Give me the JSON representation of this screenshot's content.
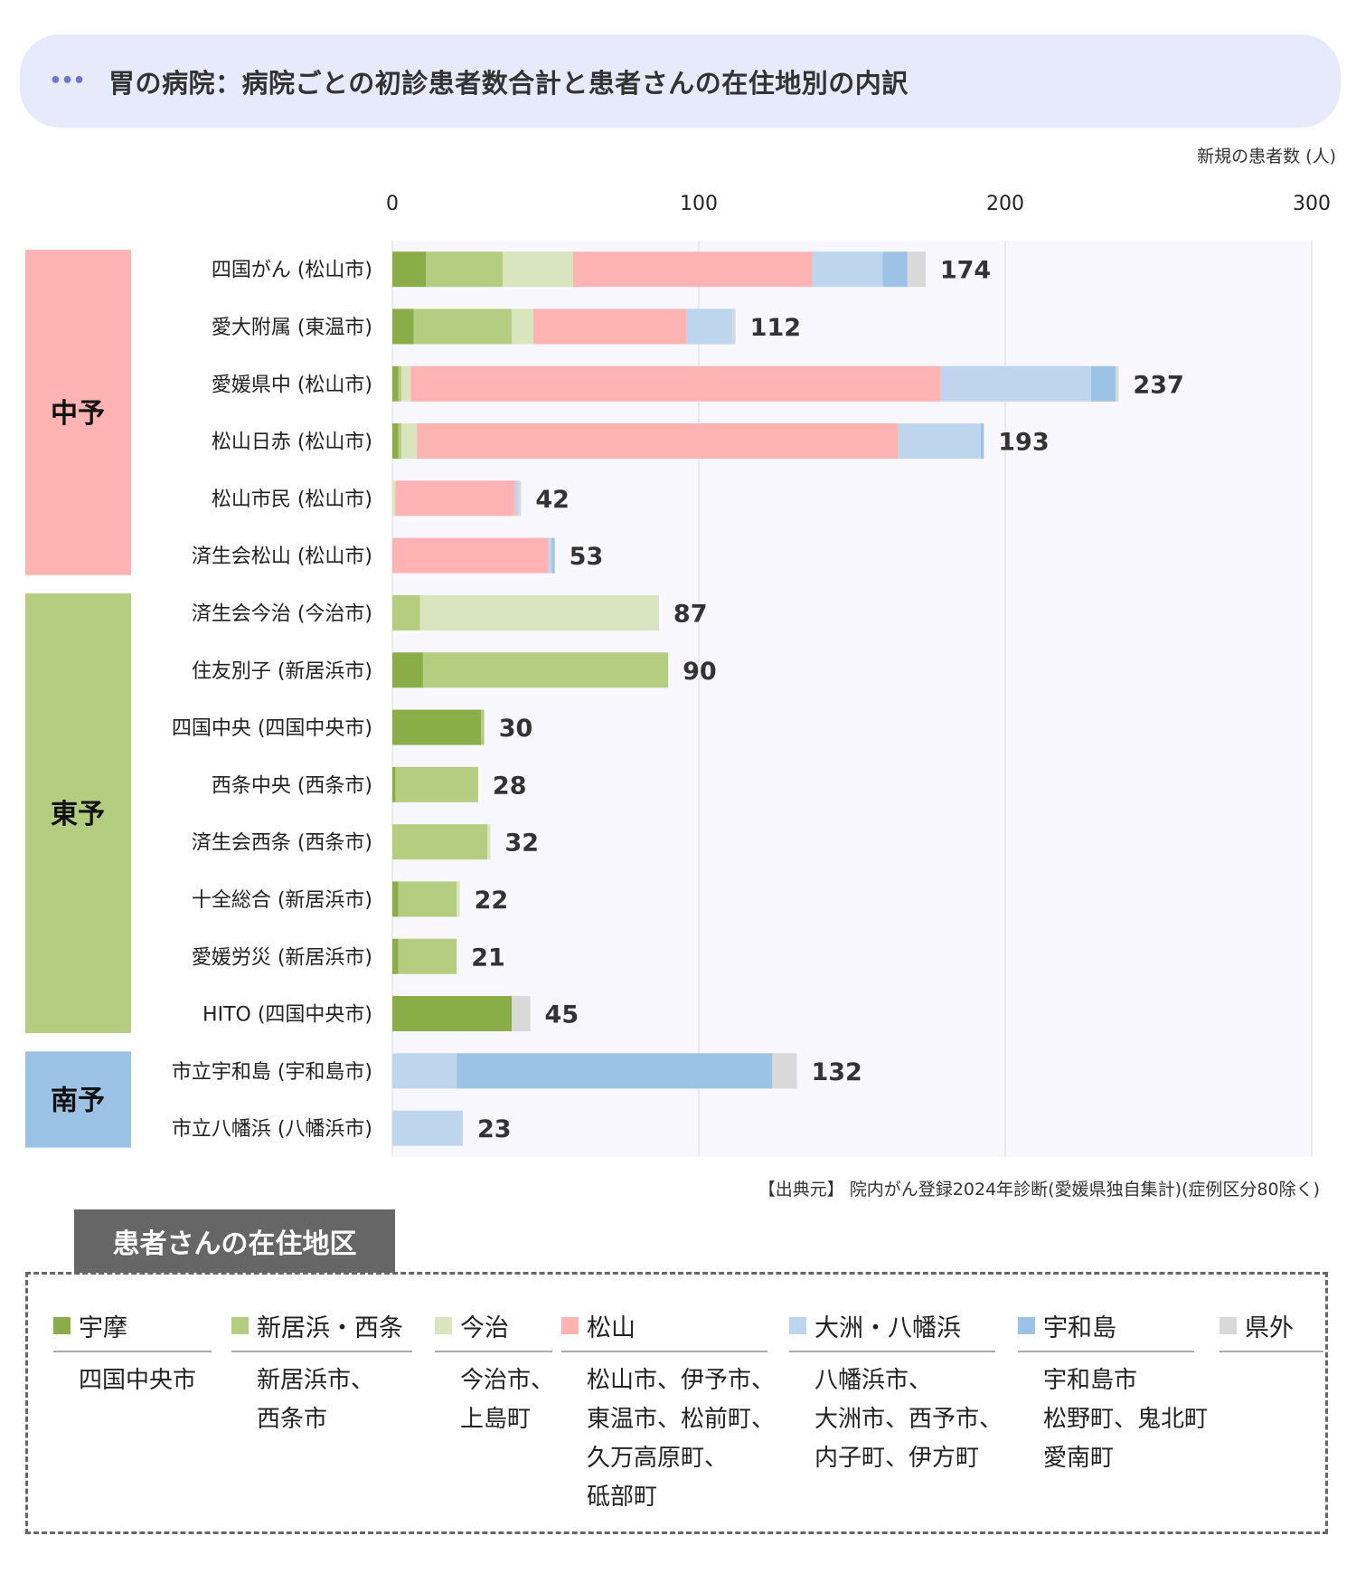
{
  "title": {
    "dots": "•••",
    "text": "胃の病院：病院ごとの初診患者数合計と患者さんの在住地別の内訳"
  },
  "unit_label": "新規の患者数 (人)",
  "source": "【出典元】 院内がん登録2024年診断(愛媛県独自集計)(症例区分80除く)",
  "colors": {
    "uma": "#8aad48",
    "niihama": "#b4cd80",
    "imabari": "#d8e5bf",
    "matsuyama": "#ffb3b3",
    "ozu": "#bdd6ee",
    "uwajima": "#9cc3e6",
    "outside": "#d9d9d9",
    "plot_bg": "#f7f7fd",
    "grid": "#dddddd",
    "region_chuyo": "#ffb3b3",
    "region_toyo": "#b4cd80",
    "region_nanyo": "#9cc3e6"
  },
  "chart_data": {
    "type": "bar",
    "orientation": "horizontal",
    "stacked": true,
    "xlim": [
      0,
      300
    ],
    "xticks": [
      "0",
      "100",
      "200",
      "300"
    ],
    "grid": true,
    "categories": [
      "四国がん (松山市)",
      "愛大附属 (東温市)",
      "愛媛県中 (松山市)",
      "松山日赤 (松山市)",
      "松山市民 (松山市)",
      "済生会松山 (松山市)",
      "済生会今治 (今治市)",
      "住友別子 (新居浜市)",
      "四国中央 (四国中央市)",
      "西条中央 (西条市)",
      "済生会西条 (西条市)",
      "十全総合 (新居浜市)",
      "愛媛労災 (新居浜市)",
      "HITO (四国中央市)",
      "市立宇和島 (宇和島市)",
      "市立八幡浜 (八幡浜市)"
    ],
    "totals": [
      174,
      112,
      237,
      193,
      42,
      53,
      87,
      90,
      30,
      28,
      32,
      22,
      21,
      45,
      132,
      23
    ],
    "series": [
      {
        "name": "宇摩",
        "color": "#8aad48",
        "values": [
          11,
          7,
          2,
          2,
          0,
          0,
          0,
          10,
          29,
          1,
          0,
          2,
          2,
          39,
          0,
          0
        ]
      },
      {
        "name": "新居浜・西条",
        "color": "#b4cd80",
        "values": [
          25,
          32,
          1,
          1,
          0,
          0,
          9,
          80,
          1,
          27,
          31,
          19,
          19,
          0,
          0,
          0
        ]
      },
      {
        "name": "今治",
        "color": "#d8e5bf",
        "values": [
          23,
          7,
          3,
          5,
          1,
          0,
          78,
          0,
          0,
          0,
          1,
          1,
          0,
          0,
          0,
          0
        ]
      },
      {
        "name": "松山",
        "color": "#ffb3b3",
        "values": [
          78,
          50,
          173,
          157,
          39,
          51,
          0,
          0,
          0,
          0,
          0,
          0,
          0,
          0,
          0,
          0
        ]
      },
      {
        "name": "大洲・八幡浜",
        "color": "#bdd6ee",
        "values": [
          23,
          15,
          49,
          27,
          1,
          1,
          0,
          0,
          0,
          0,
          0,
          0,
          0,
          0,
          21,
          23
        ]
      },
      {
        "name": "宇和島",
        "color": "#9cc3e6",
        "values": [
          8,
          0,
          8,
          1,
          0,
          1,
          0,
          0,
          0,
          0,
          0,
          0,
          0,
          0,
          103,
          0
        ]
      },
      {
        "name": "県外",
        "color": "#d9d9d9",
        "values": [
          6,
          1,
          1,
          0,
          1,
          0,
          0,
          0,
          0,
          0,
          0,
          0,
          0,
          6,
          8,
          0
        ]
      }
    ],
    "regions": [
      {
        "label": "中予",
        "rows": [
          0,
          5
        ],
        "color": "#ffb3b3"
      },
      {
        "label": "東予",
        "rows": [
          6,
          13
        ],
        "color": "#b4cd80"
      },
      {
        "label": "南予",
        "rows": [
          14,
          15
        ],
        "color": "#9cc3e6"
      }
    ]
  },
  "legend": {
    "title": "患者さんの在住地区",
    "items": [
      {
        "label": "宇摩",
        "color": "#8aad48",
        "lines": [
          "四国中央市"
        ]
      },
      {
        "label": "新居浜・西条",
        "color": "#b4cd80",
        "lines": [
          "新居浜市、",
          "西条市"
        ]
      },
      {
        "label": "今治",
        "color": "#d8e5bf",
        "lines": [
          "今治市、",
          "上島町"
        ]
      },
      {
        "label": "松山",
        "color": "#ffb3b3",
        "lines": [
          "松山市、伊予市、",
          "東温市、松前町、",
          "久万高原町、",
          "砥部町"
        ]
      },
      {
        "label": "大洲・八幡浜",
        "color": "#bdd6ee",
        "lines": [
          "八幡浜市、",
          "大洲市、西予市、",
          "内子町、伊方町"
        ]
      },
      {
        "label": "宇和島",
        "color": "#9cc3e6",
        "lines": [
          "宇和島市",
          "松野町、鬼北町",
          "愛南町"
        ]
      },
      {
        "label": "県外",
        "color": "#d9d9d9",
        "lines": []
      }
    ]
  }
}
